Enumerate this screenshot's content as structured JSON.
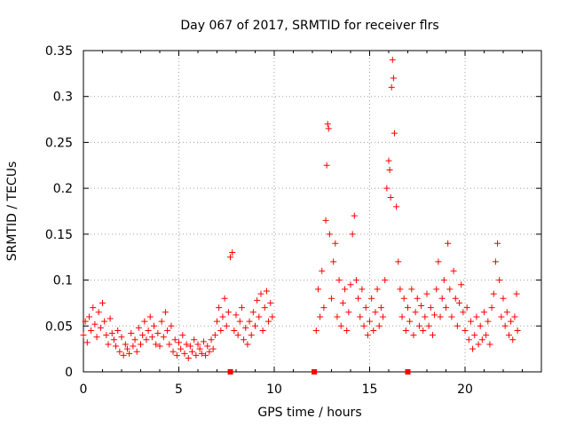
{
  "chart_data": {
    "type": "scatter",
    "title": "Day 067 of 2017, SRMTID for receiver flrs",
    "xlabel": "GPS time / hours",
    "ylabel": "SRMTID / TECUs",
    "xlim": [
      0,
      24
    ],
    "ylim": [
      0,
      0.35
    ],
    "x_ticks": [
      0,
      5,
      10,
      15,
      20
    ],
    "x_tick_labels": [
      "0",
      "5",
      "10",
      "15",
      "20"
    ],
    "y_ticks": [
      0,
      0.05,
      0.1,
      0.15,
      0.2,
      0.25,
      0.3,
      0.35
    ],
    "y_tick_labels": [
      "0",
      "0.05",
      "0.1",
      "0.15",
      "0.2",
      "0.25",
      "0.3",
      "0.35"
    ],
    "grid": true,
    "marker": "+",
    "marker_color": "#ff0000",
    "axis_markers_x": [
      7.7,
      12.1,
      17.0
    ],
    "series": [
      {
        "color": "#ff0000",
        "points": [
          [
            0.0,
            0.04
          ],
          [
            0.1,
            0.055
          ],
          [
            0.2,
            0.032
          ],
          [
            0.3,
            0.06
          ],
          [
            0.4,
            0.045
          ],
          [
            0.5,
            0.07
          ],
          [
            0.6,
            0.052
          ],
          [
            0.7,
            0.038
          ],
          [
            0.8,
            0.065
          ],
          [
            0.9,
            0.048
          ],
          [
            1.0,
            0.075
          ],
          [
            1.1,
            0.055
          ],
          [
            1.2,
            0.04
          ],
          [
            1.3,
            0.03
          ],
          [
            1.4,
            0.058
          ],
          [
            1.5,
            0.042
          ],
          [
            1.6,
            0.035
          ],
          [
            1.7,
            0.028
          ],
          [
            1.8,
            0.045
          ],
          [
            1.9,
            0.022
          ],
          [
            2.0,
            0.038
          ],
          [
            2.1,
            0.018
          ],
          [
            2.2,
            0.03
          ],
          [
            2.3,
            0.025
          ],
          [
            2.4,
            0.02
          ],
          [
            2.5,
            0.042
          ],
          [
            2.6,
            0.028
          ],
          [
            2.7,
            0.035
          ],
          [
            2.8,
            0.022
          ],
          [
            2.9,
            0.048
          ],
          [
            3.0,
            0.03
          ],
          [
            3.1,
            0.04
          ],
          [
            3.2,
            0.055
          ],
          [
            3.3,
            0.035
          ],
          [
            3.4,
            0.045
          ],
          [
            3.5,
            0.06
          ],
          [
            3.6,
            0.038
          ],
          [
            3.7,
            0.05
          ],
          [
            3.8,
            0.03
          ],
          [
            3.9,
            0.042
          ],
          [
            4.0,
            0.028
          ],
          [
            4.1,
            0.055
          ],
          [
            4.2,
            0.038
          ],
          [
            4.3,
            0.065
          ],
          [
            4.4,
            0.045
          ],
          [
            4.5,
            0.03
          ],
          [
            4.6,
            0.05
          ],
          [
            4.7,
            0.022
          ],
          [
            4.8,
            0.035
          ],
          [
            4.9,
            0.018
          ],
          [
            5.0,
            0.032
          ],
          [
            5.1,
            0.025
          ],
          [
            5.2,
            0.04
          ],
          [
            5.3,
            0.02
          ],
          [
            5.4,
            0.03
          ],
          [
            5.5,
            0.015
          ],
          [
            5.6,
            0.028
          ],
          [
            5.7,
            0.022
          ],
          [
            5.8,
            0.035
          ],
          [
            5.9,
            0.018
          ],
          [
            6.0,
            0.03
          ],
          [
            6.1,
            0.025
          ],
          [
            6.2,
            0.02
          ],
          [
            6.3,
            0.033
          ],
          [
            6.4,
            0.018
          ],
          [
            6.5,
            0.028
          ],
          [
            6.6,
            0.022
          ],
          [
            6.7,
            0.035
          ],
          [
            6.8,
            0.025
          ],
          [
            6.9,
            0.04
          ],
          [
            7.0,
            0.055
          ],
          [
            7.1,
            0.07
          ],
          [
            7.2,
            0.045
          ],
          [
            7.3,
            0.06
          ],
          [
            7.4,
            0.08
          ],
          [
            7.5,
            0.05
          ],
          [
            7.6,
            0.065
          ],
          [
            7.7,
            0.125
          ],
          [
            7.8,
            0.13
          ],
          [
            7.9,
            0.045
          ],
          [
            8.0,
            0.062
          ],
          [
            8.1,
            0.04
          ],
          [
            8.2,
            0.055
          ],
          [
            8.3,
            0.07
          ],
          [
            8.4,
            0.035
          ],
          [
            8.5,
            0.048
          ],
          [
            8.6,
            0.03
          ],
          [
            8.7,
            0.055
          ],
          [
            8.8,
            0.04
          ],
          [
            8.9,
            0.065
          ],
          [
            9.0,
            0.05
          ],
          [
            9.1,
            0.078
          ],
          [
            9.2,
            0.06
          ],
          [
            9.3,
            0.085
          ],
          [
            9.4,
            0.045
          ],
          [
            9.5,
            0.07
          ],
          [
            9.6,
            0.088
          ],
          [
            9.7,
            0.055
          ],
          [
            9.8,
            0.075
          ],
          [
            9.9,
            0.06
          ],
          [
            12.2,
            0.045
          ],
          [
            12.3,
            0.09
          ],
          [
            12.4,
            0.06
          ],
          [
            12.5,
            0.11
          ],
          [
            12.6,
            0.07
          ],
          [
            12.7,
            0.165
          ],
          [
            12.75,
            0.225
          ],
          [
            12.8,
            0.27
          ],
          [
            12.85,
            0.265
          ],
          [
            12.9,
            0.15
          ],
          [
            13.0,
            0.08
          ],
          [
            13.1,
            0.12
          ],
          [
            13.2,
            0.14
          ],
          [
            13.3,
            0.06
          ],
          [
            13.4,
            0.1
          ],
          [
            13.5,
            0.05
          ],
          [
            13.6,
            0.075
          ],
          [
            13.7,
            0.09
          ],
          [
            13.8,
            0.045
          ],
          [
            13.9,
            0.065
          ],
          [
            14.0,
            0.095
          ],
          [
            14.1,
            0.15
          ],
          [
            14.2,
            0.17
          ],
          [
            14.3,
            0.1
          ],
          [
            14.4,
            0.08
          ],
          [
            14.5,
            0.06
          ],
          [
            14.6,
            0.09
          ],
          [
            14.7,
            0.05
          ],
          [
            14.8,
            0.07
          ],
          [
            14.9,
            0.04
          ],
          [
            15.0,
            0.055
          ],
          [
            15.1,
            0.08
          ],
          [
            15.2,
            0.045
          ],
          [
            15.3,
            0.065
          ],
          [
            15.4,
            0.09
          ],
          [
            15.5,
            0.05
          ],
          [
            15.6,
            0.07
          ],
          [
            15.7,
            0.06
          ],
          [
            15.8,
            0.1
          ],
          [
            15.9,
            0.2
          ],
          [
            16.0,
            0.23
          ],
          [
            16.05,
            0.22
          ],
          [
            16.1,
            0.19
          ],
          [
            16.15,
            0.31
          ],
          [
            16.2,
            0.34
          ],
          [
            16.25,
            0.32
          ],
          [
            16.3,
            0.26
          ],
          [
            16.4,
            0.18
          ],
          [
            16.5,
            0.12
          ],
          [
            16.6,
            0.09
          ],
          [
            16.7,
            0.06
          ],
          [
            16.8,
            0.08
          ],
          [
            16.9,
            0.045
          ],
          [
            17.0,
            0.07
          ],
          [
            17.1,
            0.055
          ],
          [
            17.2,
            0.09
          ],
          [
            17.3,
            0.04
          ],
          [
            17.4,
            0.065
          ],
          [
            17.5,
            0.08
          ],
          [
            17.6,
            0.05
          ],
          [
            17.7,
            0.072
          ],
          [
            17.8,
            0.045
          ],
          [
            17.9,
            0.06
          ],
          [
            18.0,
            0.085
          ],
          [
            18.1,
            0.05
          ],
          [
            18.2,
            0.07
          ],
          [
            18.3,
            0.04
          ],
          [
            18.4,
            0.062
          ],
          [
            18.5,
            0.09
          ],
          [
            18.6,
            0.12
          ],
          [
            18.7,
            0.06
          ],
          [
            18.8,
            0.08
          ],
          [
            18.9,
            0.1
          ],
          [
            19.0,
            0.07
          ],
          [
            19.1,
            0.14
          ],
          [
            19.2,
            0.09
          ],
          [
            19.3,
            0.06
          ],
          [
            19.4,
            0.11
          ],
          [
            19.5,
            0.08
          ],
          [
            19.6,
            0.05
          ],
          [
            19.7,
            0.075
          ],
          [
            19.8,
            0.095
          ],
          [
            19.9,
            0.065
          ],
          [
            20.0,
            0.045
          ],
          [
            20.1,
            0.07
          ],
          [
            20.2,
            0.035
          ],
          [
            20.3,
            0.055
          ],
          [
            20.4,
            0.025
          ],
          [
            20.5,
            0.04
          ],
          [
            20.6,
            0.06
          ],
          [
            20.7,
            0.03
          ],
          [
            20.8,
            0.05
          ],
          [
            20.9,
            0.035
          ],
          [
            21.0,
            0.065
          ],
          [
            21.1,
            0.04
          ],
          [
            21.2,
            0.055
          ],
          [
            21.3,
            0.03
          ],
          [
            21.4,
            0.07
          ],
          [
            21.5,
            0.085
          ],
          [
            21.6,
            0.12
          ],
          [
            21.7,
            0.14
          ],
          [
            21.8,
            0.1
          ],
          [
            21.9,
            0.06
          ],
          [
            22.0,
            0.08
          ],
          [
            22.1,
            0.05
          ],
          [
            22.2,
            0.065
          ],
          [
            22.3,
            0.04
          ],
          [
            22.4,
            0.055
          ],
          [
            22.5,
            0.035
          ],
          [
            22.6,
            0.06
          ],
          [
            22.7,
            0.085
          ],
          [
            22.75,
            0.045
          ]
        ]
      }
    ]
  }
}
